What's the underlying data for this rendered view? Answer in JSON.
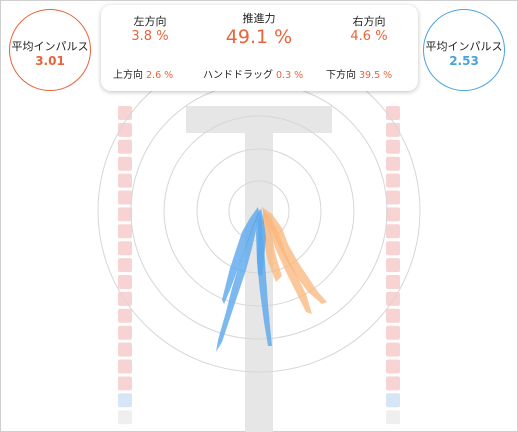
{
  "left_impulse": {
    "label": "平均インパルス",
    "value": "3.01"
  },
  "right_impulse": {
    "label": "平均インパルス",
    "value": "2.53"
  },
  "stats": {
    "left_dir": {
      "label": "左方向",
      "value": "3.8 %"
    },
    "propulsion": {
      "label": "推進力",
      "value": "49.1 %"
    },
    "right_dir": {
      "label": "右方向",
      "value": "4.6 %"
    },
    "up_dir": {
      "label": "上方向",
      "value": "2.6 %"
    },
    "hand_drag": {
      "label": "ハンドドラッグ",
      "value": "0.3 %"
    },
    "down_dir": {
      "label": "下方向",
      "value": "39.5 %"
    }
  },
  "colors": {
    "left_accent": "#e8643a",
    "right_accent": "#4aa3df",
    "left_stroke_fill": "#f9b679",
    "right_stroke_fill": "#5aa8ec",
    "lane_marker_red": "#f8d3d3",
    "lane_marker_blue": "#d7e6f7",
    "lane_guide": "#e6e6e6",
    "ring": "#d6d6d6"
  },
  "lane_markers": {
    "left": [
      "red",
      "red",
      "red",
      "red",
      "red",
      "red",
      "red",
      "red",
      "red",
      "red",
      "red",
      "red",
      "red",
      "red",
      "red",
      "red",
      "red",
      "blue",
      "grey"
    ],
    "right": [
      "red",
      "red",
      "red",
      "red",
      "red",
      "red",
      "red",
      "red",
      "red",
      "red",
      "red",
      "red",
      "red",
      "red",
      "red",
      "red",
      "red",
      "blue",
      "grey"
    ]
  },
  "icons": {
    "lane_guide": "t-shape-lane-icon"
  }
}
